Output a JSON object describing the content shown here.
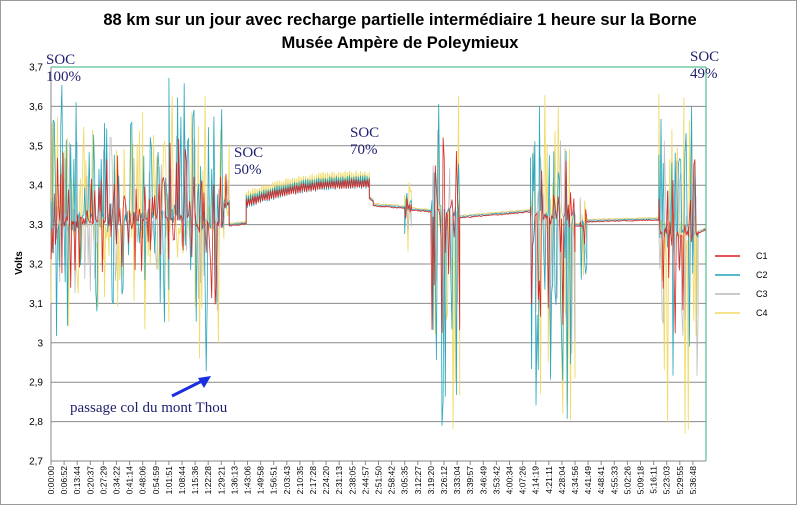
{
  "chart_data": {
    "type": "line",
    "title": "88 km sur un jour avec recharge partielle intermédiaire 1 heure sur la Borne",
    "subtitle": "Musée Ampère de Poleymieux",
    "xlabel": "",
    "ylabel": "Volts",
    "ylim": [
      2.7,
      3.7
    ],
    "yticks": [
      "2,7",
      "2,8",
      "2,9",
      "3",
      "3,1",
      "3,2",
      "3,3",
      "3,4",
      "3,5",
      "3,6",
      "3,7"
    ],
    "x_tick_labels": [
      "0:00:00",
      "0:06:52",
      "0:13:44",
      "0:20:37",
      "0:27:29",
      "0:34:22",
      "0:41:14",
      "0:48:06",
      "0:54:59",
      "1:01:51",
      "1:08:44",
      "1:15:36",
      "1:22:28",
      "1:29:21",
      "1:36:13",
      "1:43:06",
      "1:49:58",
      "1:56:51",
      "2:03:43",
      "2:10:35",
      "2:17:28",
      "2:24:20",
      "2:31:13",
      "2:38:05",
      "2:44:57",
      "2:51:50",
      "2:58:42",
      "3:05:35",
      "3:12:27",
      "3:19:20",
      "3:26:12",
      "3:33:04",
      "3:39:57",
      "3:46:49",
      "3:53:42",
      "4:00:34",
      "4:07:26",
      "4:14:19",
      "4:21:11",
      "4:28:04",
      "4:34:56",
      "4:41:49",
      "4:48:41",
      "4:55:33",
      "5:02:26",
      "5:09:18",
      "5:16:11",
      "5:23:03",
      "5:29:55",
      "5:36:48"
    ],
    "grid": true,
    "legend_position": "right",
    "series": [
      {
        "name": "C1",
        "color": "#d81f1f"
      },
      {
        "name": "C2",
        "color": "#1fa3b8"
      },
      {
        "name": "C3",
        "color": "#b9b9b9"
      },
      {
        "name": "C4",
        "color": "#f0da63"
      }
    ],
    "phases": [
      {
        "tick_from": 0,
        "tick_to": 2,
        "kind": "drive",
        "base": 3.3,
        "lo": 3.0,
        "hi": 3.66
      },
      {
        "tick_from": 2,
        "tick_to": 4,
        "kind": "drive",
        "base": 3.31,
        "lo": 3.05,
        "hi": 3.55
      },
      {
        "tick_from": 4,
        "tick_to": 7,
        "kind": "drive",
        "base": 3.31,
        "lo": 3.05,
        "hi": 3.62
      },
      {
        "tick_from": 7,
        "tick_to": 9,
        "kind": "drive",
        "base": 3.32,
        "lo": 3.03,
        "hi": 3.55
      },
      {
        "tick_from": 9,
        "tick_to": 11,
        "kind": "drive",
        "base": 3.32,
        "lo": 3.05,
        "hi": 3.68
      },
      {
        "tick_from": 11,
        "tick_to": 13.2,
        "kind": "drive",
        "base": 3.3,
        "lo": 2.9,
        "hi": 3.6
      },
      {
        "tick_from": 13.2,
        "tick_to": 13.6,
        "kind": "drive",
        "base": 3.35,
        "lo": 3.25,
        "hi": 3.56
      },
      {
        "tick_from": 13.6,
        "tick_to": 14.9,
        "kind": "rest",
        "from": 3.3,
        "to": 3.305
      },
      {
        "tick_from": 14.9,
        "tick_to": 24.3,
        "kind": "charge",
        "from": 3.36,
        "to": 3.41
      },
      {
        "tick_from": 24.3,
        "tick_to": 24.6,
        "kind": "rest",
        "from": 3.37,
        "to": 3.36
      },
      {
        "tick_from": 24.6,
        "tick_to": 27,
        "kind": "rest",
        "from": 3.35,
        "to": 3.345
      },
      {
        "tick_from": 27,
        "tick_to": 27.5,
        "kind": "drive",
        "base": 3.34,
        "lo": 3.25,
        "hi": 3.4
      },
      {
        "tick_from": 27.5,
        "tick_to": 29,
        "kind": "rest",
        "from": 3.34,
        "to": 3.335
      },
      {
        "tick_from": 29,
        "tick_to": 31.2,
        "kind": "drive",
        "base": 3.33,
        "lo": 2.76,
        "hi": 3.68
      },
      {
        "tick_from": 31.2,
        "tick_to": 36.6,
        "kind": "rest",
        "from": 3.32,
        "to": 3.335
      },
      {
        "tick_from": 36.6,
        "tick_to": 40,
        "kind": "drive",
        "base": 3.32,
        "lo": 2.8,
        "hi": 3.6
      },
      {
        "tick_from": 40,
        "tick_to": 40.4,
        "kind": "rest",
        "from": 3.3,
        "to": 3.3
      },
      {
        "tick_from": 40.4,
        "tick_to": 40.9,
        "kind": "drive",
        "base": 3.3,
        "lo": 3.15,
        "hi": 3.4
      },
      {
        "tick_from": 40.9,
        "tick_to": 46.4,
        "kind": "rest",
        "from": 3.31,
        "to": 3.315
      },
      {
        "tick_from": 46.4,
        "tick_to": 49.4,
        "kind": "drive",
        "base": 3.28,
        "lo": 2.76,
        "hi": 3.62
      },
      {
        "tick_from": 49.4,
        "tick_to": 50,
        "kind": "rest",
        "from": 3.28,
        "to": 3.29
      }
    ]
  },
  "annotations": {
    "soc_start": "SOC\n100%",
    "soc_mid": "SOC\n50%",
    "soc_charge": "SOC\n70%",
    "soc_end": "SOC\n49%",
    "pass_label": "passage col du mont Thou"
  },
  "arrow_color": "#1a2fe0"
}
